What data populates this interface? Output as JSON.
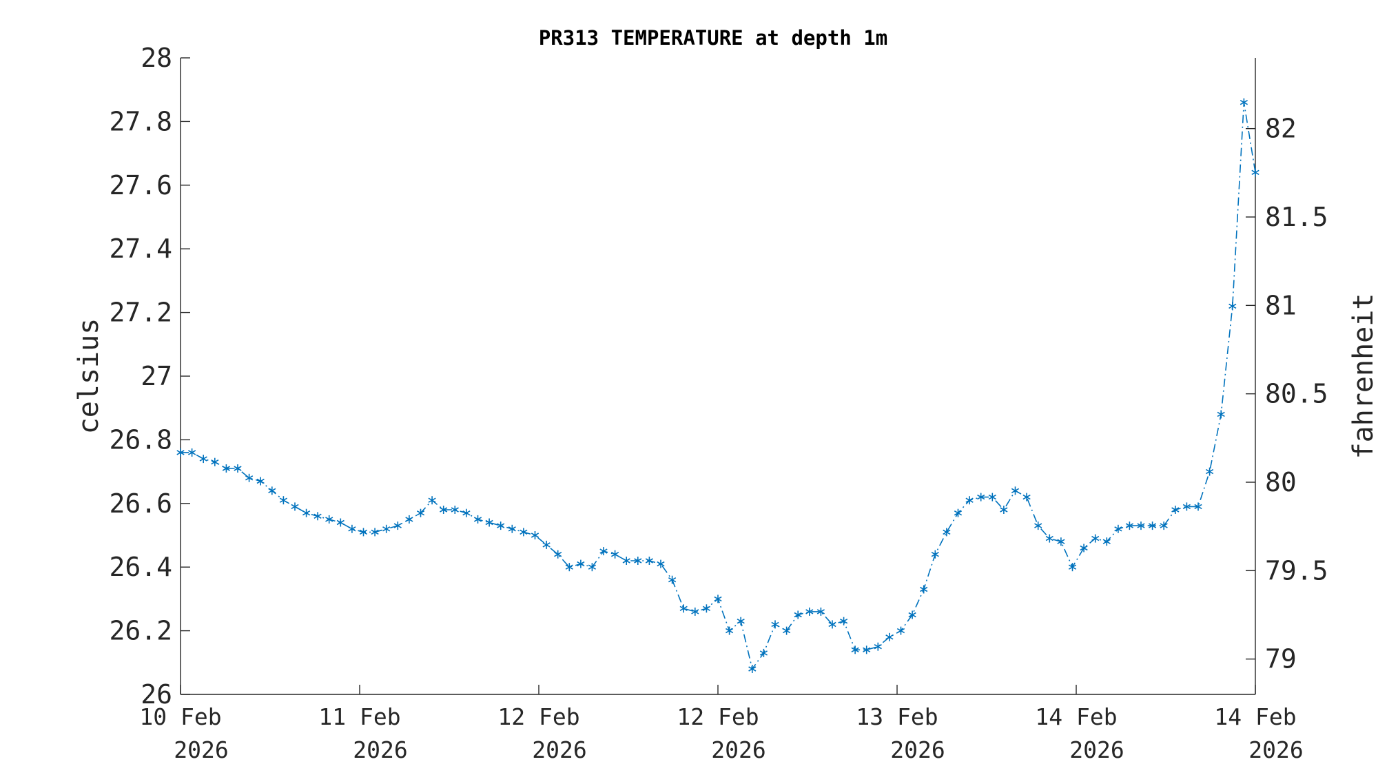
{
  "chart_data": {
    "type": "line",
    "title": "PR313 TEMPERATURE at depth 1m",
    "ylabel": "celsius",
    "ylabel_right": "fahrenheit",
    "ylim": [
      26,
      28
    ],
    "ylim_right": [
      78.8,
      82.4
    ],
    "yticks": [
      "26",
      "26.2",
      "26.4",
      "26.6",
      "26.8",
      "27",
      "27.2",
      "27.4",
      "27.6",
      "27.8",
      "28"
    ],
    "yticks_right": [
      "79",
      "79.5",
      "80",
      "80.5",
      "81",
      "81.5",
      "82"
    ],
    "xticks": [
      {
        "line1": "10 Feb",
        "line2": "2026"
      },
      {
        "line1": "11 Feb",
        "line2": "2026"
      },
      {
        "line1": "12 Feb",
        "line2": "2026"
      },
      {
        "line1": "12 Feb",
        "line2": "2026"
      },
      {
        "line1": "13 Feb",
        "line2": "2026"
      },
      {
        "line1": "14 Feb",
        "line2": "2026"
      },
      {
        "line1": "14 Feb",
        "line2": "2026"
      }
    ],
    "grid": false,
    "series_color": "#0072BD",
    "line_style": "dash-dot",
    "marker": "asterisk",
    "series": [
      {
        "values": [
          26.76,
          26.76,
          26.74,
          26.73,
          26.71,
          26.71,
          26.68,
          26.67,
          26.64,
          26.61,
          26.59,
          26.57,
          26.56,
          26.55,
          26.54,
          26.52,
          26.51,
          26.51,
          26.52,
          26.53,
          26.55,
          26.57,
          26.61,
          26.58,
          26.58,
          26.57,
          26.55,
          26.54,
          26.53,
          26.52,
          26.51,
          26.5,
          26.47,
          26.44,
          26.4,
          26.41,
          26.4,
          26.45,
          26.44,
          26.42,
          26.42,
          26.42,
          26.41,
          26.36,
          26.27,
          26.26,
          26.27,
          26.3,
          26.2,
          26.23,
          26.08,
          26.13,
          26.22,
          26.2,
          26.25,
          26.26,
          26.26,
          26.22,
          26.23,
          26.14,
          26.14,
          26.15,
          26.18,
          26.2,
          26.25,
          26.33,
          26.44,
          26.51,
          26.57,
          26.61,
          26.62,
          26.62,
          26.58,
          26.64,
          26.62,
          26.53,
          26.49,
          26.48,
          26.4,
          26.46,
          26.49,
          26.48,
          26.52,
          26.53,
          26.53,
          26.53,
          26.53,
          26.58,
          26.59,
          26.59,
          26.7,
          26.88,
          27.22,
          27.86,
          27.64
        ]
      }
    ]
  }
}
